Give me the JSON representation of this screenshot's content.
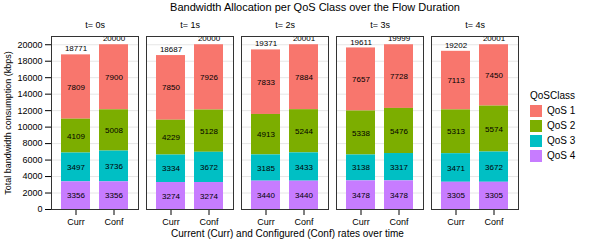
{
  "chart_data": {
    "type": "bar",
    "title": "Bandwidth Allocation per QoS Class over the Flow Duration",
    "x_label": "Current (Curr) and Configured (Conf) rates over time",
    "y_label": "Total bandwidth consumption (kbps)",
    "facets": [
      "t= 0s",
      "t= 1s",
      "t= 2s",
      "t= 3s",
      "t= 4s"
    ],
    "categories": [
      "Curr",
      "Conf"
    ],
    "legend_title": "QoSClass",
    "series": [
      {
        "name": "QoS 1",
        "color": "#F8766D",
        "values": [
          [
            7809,
            7900
          ],
          [
            7850,
            7926
          ],
          [
            7833,
            7884
          ],
          [
            7657,
            7728
          ],
          [
            7113,
            7450
          ]
        ]
      },
      {
        "name": "QoS 2",
        "color": "#7CAE00",
        "values": [
          [
            4109,
            5008
          ],
          [
            4229,
            5128
          ],
          [
            4913,
            5244
          ],
          [
            5338,
            5476
          ],
          [
            5313,
            5574
          ]
        ]
      },
      {
        "name": "QoS 3",
        "color": "#00BFC4",
        "values": [
          [
            3497,
            3736
          ],
          [
            3334,
            3672
          ],
          [
            3185,
            3433
          ],
          [
            3138,
            3317
          ],
          [
            3471,
            3672
          ]
        ]
      },
      {
        "name": "QoS 4",
        "color": "#C77CFF",
        "values": [
          [
            3356,
            3356
          ],
          [
            3274,
            3274
          ],
          [
            3440,
            3440
          ],
          [
            3478,
            3478
          ],
          [
            3305,
            3305
          ]
        ]
      }
    ],
    "totals": [
      [
        18771,
        20000
      ],
      [
        18687,
        20000
      ],
      [
        19371,
        20001
      ],
      [
        19611,
        19999
      ],
      [
        19202,
        20001
      ]
    ],
    "ylim": [
      0,
      21000
    ],
    "yticks": [
      0,
      2000,
      4000,
      6000,
      8000,
      10000,
      12000,
      14000,
      16000,
      18000,
      20000
    ],
    "stacked": true,
    "data_labels": true,
    "grid": true,
    "legend": "right"
  }
}
